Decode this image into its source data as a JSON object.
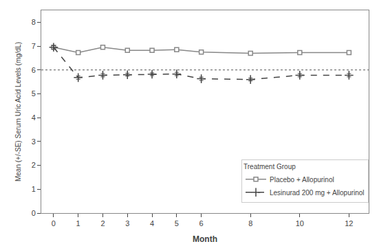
{
  "chart_data": {
    "type": "line",
    "x_label": "Month",
    "y_label": "Mean (+/-SE) Serum Uric Acid Levels (mg/dL)",
    "x": [
      0,
      1,
      2,
      3,
      4,
      5,
      6,
      8,
      10,
      12
    ],
    "series": [
      {
        "name": "Placebo + Allopurinol",
        "color": "#888888",
        "marker": "square",
        "line_style": "solid",
        "values": [
          6.95,
          6.73,
          6.95,
          6.82,
          6.82,
          6.85,
          6.75,
          6.7,
          6.73,
          6.73
        ],
        "errors": [
          0.07,
          0.07,
          0.07,
          0.06,
          0.06,
          0.06,
          0.07,
          0.07,
          0.07,
          0.07
        ]
      },
      {
        "name": "Lesinurad 200 mg + Allopurinol",
        "color": "#444444",
        "marker": "cross",
        "line_style": "dashed",
        "values": [
          6.95,
          5.68,
          5.78,
          5.8,
          5.82,
          5.83,
          5.63,
          5.6,
          5.78,
          5.78
        ],
        "errors": [
          0.07,
          0.07,
          0.07,
          0.06,
          0.06,
          0.07,
          0.07,
          0.06,
          0.07,
          0.07
        ]
      }
    ],
    "reference_line": {
      "y": 6.0,
      "color": "#555555",
      "line_style": "dotted"
    },
    "xlim": [
      -0.5,
      12.8
    ],
    "xticks": [
      0,
      1,
      2,
      3,
      4,
      5,
      6,
      8,
      10,
      12
    ],
    "ylim": [
      0,
      8.5
    ],
    "yticks": [
      0,
      1,
      2,
      3,
      4,
      5,
      6,
      7,
      8
    ],
    "grid": false,
    "legend": "lower right",
    "legend_title": "Treatment Group"
  }
}
